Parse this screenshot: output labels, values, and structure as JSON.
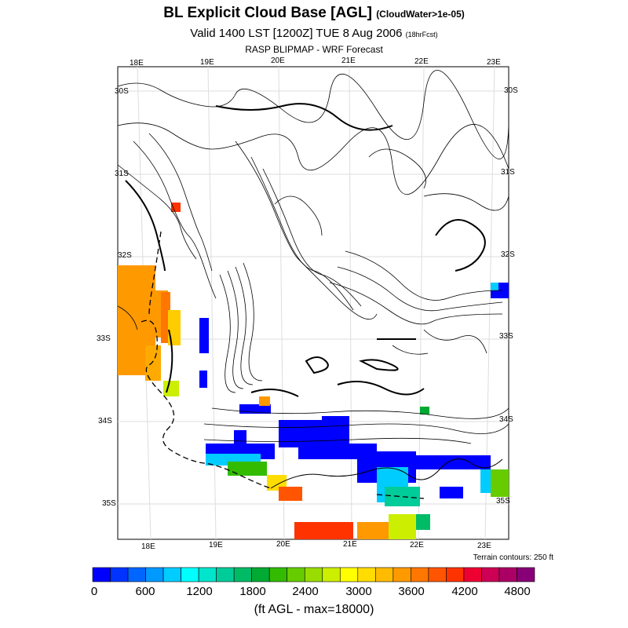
{
  "header": {
    "title": "BL Explicit Cloud Base [AGL]",
    "title_note": "(CloudWater>1e-05)",
    "subtitle": "Valid 1400 LST [1200Z] TUE 8 Aug 2006",
    "subtitle_note": "(18hrFcst)",
    "source": "RASP BLIPMAP - WRF Forecast"
  },
  "map": {
    "top_lon_labels": [
      "18E",
      "19E",
      "20E",
      "21E",
      "22E",
      "23E"
    ],
    "bottom_lon_labels": [
      "18E",
      "19E",
      "20E",
      "21E",
      "22E",
      "23E"
    ],
    "left_lat_labels": [
      "30S",
      "31S",
      "32S",
      "33S",
      "34S",
      "35S"
    ],
    "right_lat_labels": [
      "30S",
      "31S",
      "32S",
      "33S",
      "34S",
      "35S"
    ],
    "terrain_note": "Terrain contours: 250 ft"
  },
  "colorbar": {
    "colors": [
      "#0000ff",
      "#0033ff",
      "#0066ff",
      "#0099ff",
      "#00ccff",
      "#00ffff",
      "#00e5cc",
      "#00cc99",
      "#00bb66",
      "#00aa33",
      "#33bb00",
      "#66cc00",
      "#99dd00",
      "#ccee00",
      "#ffff00",
      "#ffdd00",
      "#ffbb00",
      "#ff9900",
      "#ff7700",
      "#ff5500",
      "#ff3300",
      "#ee0033",
      "#cc0055",
      "#aa0066",
      "#880077"
    ],
    "tick_labels": [
      "0",
      "600",
      "1200",
      "1800",
      "2400",
      "3000",
      "3600",
      "4200",
      "4800"
    ],
    "units": "(ft AGL - max=18000)"
  }
}
